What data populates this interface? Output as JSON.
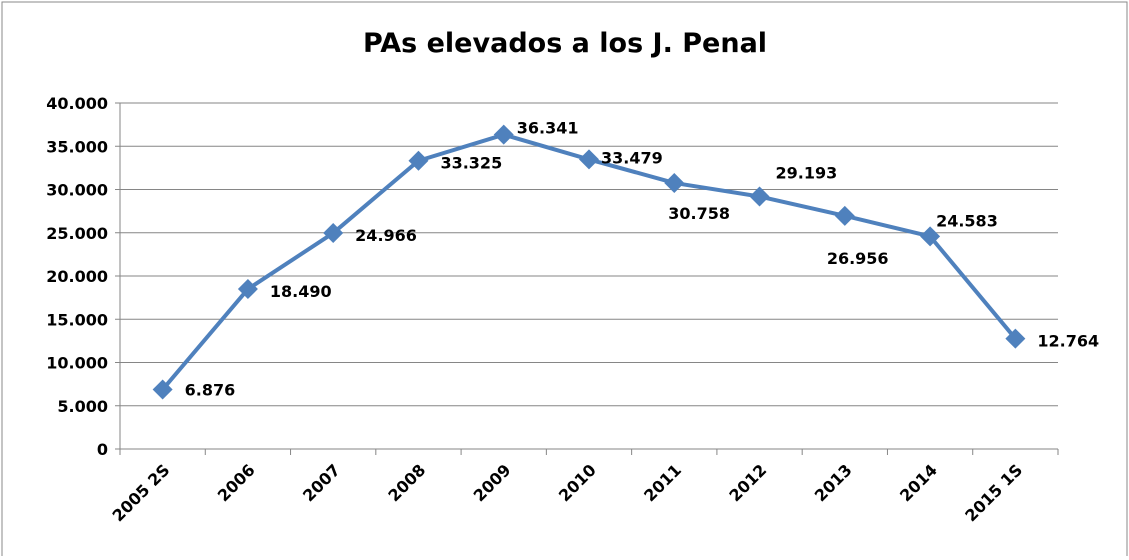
{
  "chart_data": {
    "type": "line",
    "title": "PAs elevados a los J. Penal",
    "categories": [
      "2005 2S",
      "2006",
      "2007",
      "2008",
      "2009",
      "2010",
      "2011",
      "2012",
      "2013",
      "2014",
      "2015 1S"
    ],
    "values": [
      6876,
      18490,
      24966,
      33325,
      36341,
      33479,
      30758,
      29193,
      26956,
      24583,
      12764
    ],
    "value_labels": [
      "6.876",
      "18.490",
      "24.966",
      "33.325",
      "36.341",
      "33.479",
      "30.758",
      "29.193",
      "26.956",
      "24.583",
      "12.764"
    ],
    "color": "#4f81bd",
    "ylim": [
      0,
      40000
    ],
    "yticks": [
      0,
      {
        "value": 5000,
        "label": "5.000"
      },
      {
        "value": 10000,
        "label": "10.000"
      },
      {
        "value": 15000,
        "label": "15.000"
      },
      {
        "value": 20000,
        "label": "20.000"
      },
      {
        "value": 25000,
        "label": "25.000"
      },
      {
        "value": 30000,
        "label": "30.000"
      },
      {
        "value": 35000,
        "label": "35.000"
      },
      {
        "value": 40000,
        "label": "40.000"
      }
    ],
    "grid": true
  }
}
